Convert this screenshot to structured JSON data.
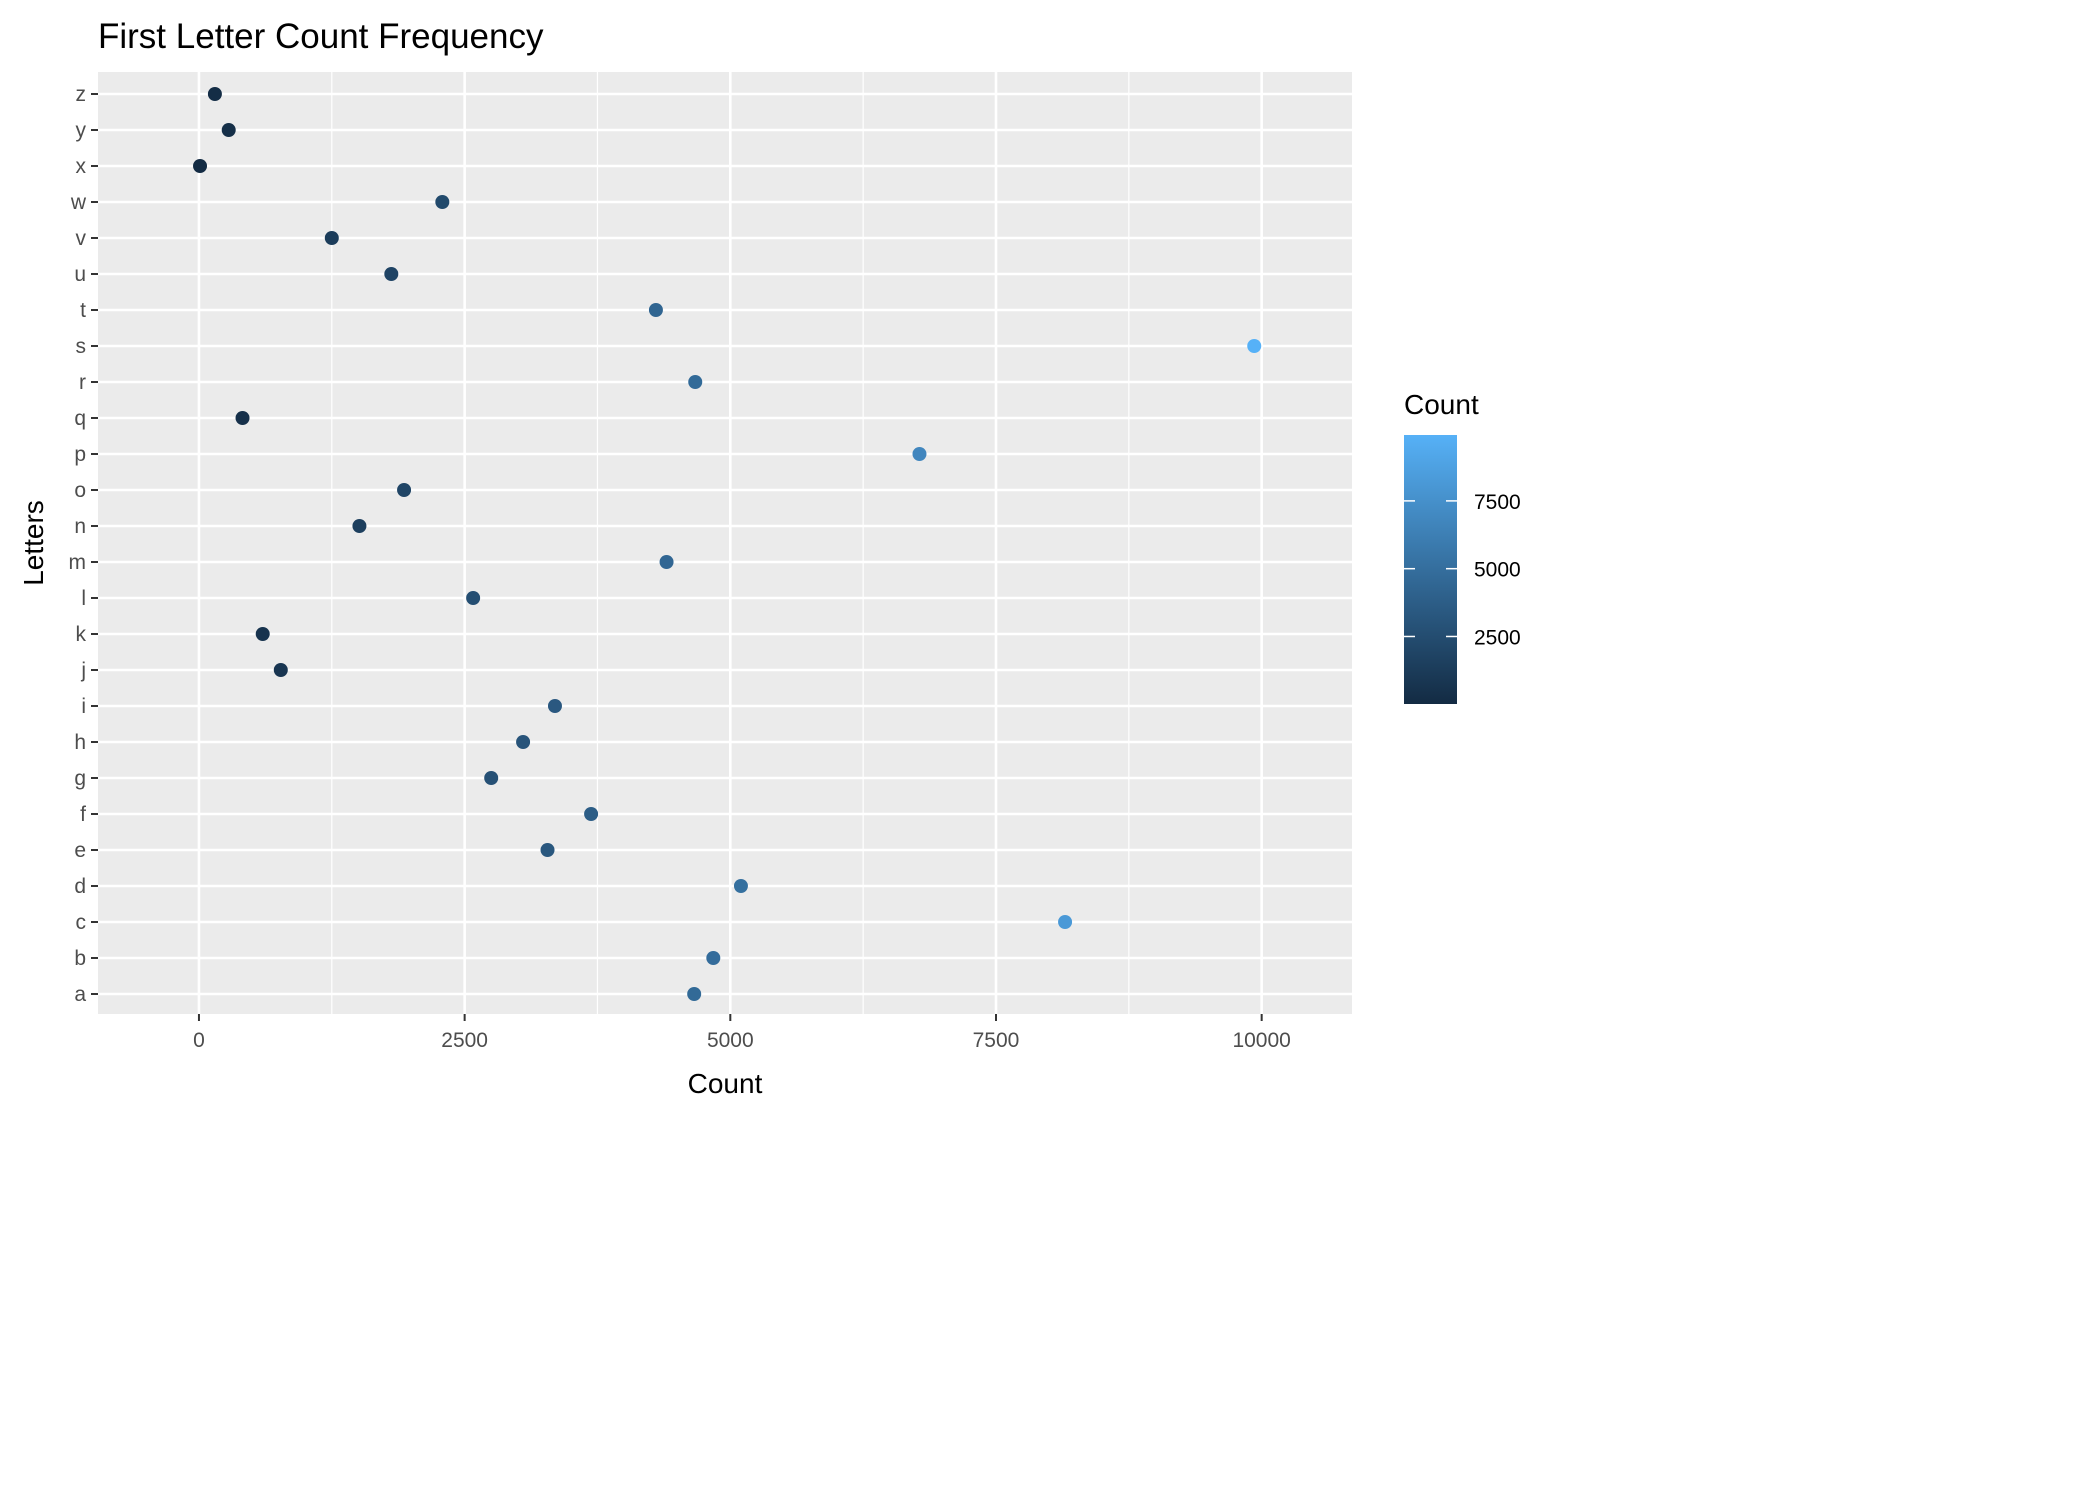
{
  "chart_data": {
    "type": "scatter",
    "title": "First Letter Count Frequency",
    "xlabel": "Count",
    "ylabel": "Letters",
    "xlim": [
      -950,
      10850
    ],
    "x_ticks": [
      0,
      2500,
      5000,
      7500,
      10000
    ],
    "categories": [
      "a",
      "b",
      "c",
      "d",
      "e",
      "f",
      "g",
      "h",
      "i",
      "j",
      "k",
      "l",
      "m",
      "n",
      "o",
      "p",
      "q",
      "r",
      "s",
      "t",
      "u",
      "v",
      "w",
      "x",
      "y",
      "z"
    ],
    "values": [
      4660,
      4840,
      8150,
      5100,
      3280,
      3690,
      2750,
      3050,
      3350,
      770,
      600,
      2580,
      4400,
      1510,
      1930,
      6780,
      410,
      4670,
      9930,
      4300,
      1810,
      1250,
      2290,
      10,
      280,
      150
    ],
    "grid": true,
    "background": "#ebebeb",
    "grid_color": "#ffffff",
    "legend": {
      "title": "Count",
      "position": "right",
      "ticks": [
        2500,
        5000,
        7500
      ],
      "range": [
        10,
        9930
      ],
      "color_low": "#132b43",
      "color_high": "#56b1f7"
    }
  }
}
